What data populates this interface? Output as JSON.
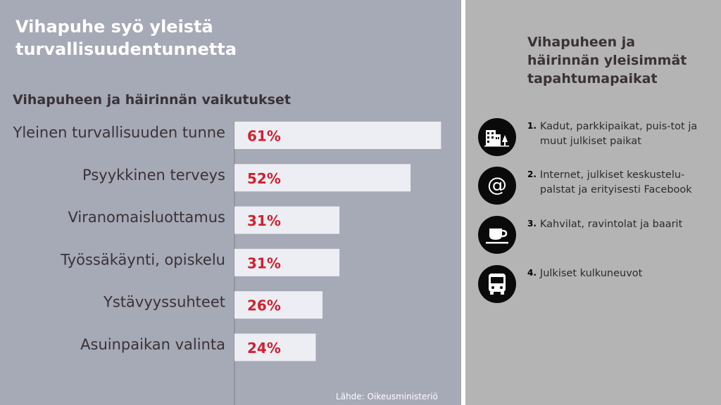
{
  "left": {
    "title": "Vihapuhe syö yleistä turvallisuudentunnetta",
    "subtitle": "Vihapuheen ja häirinnän vaikutukset",
    "source": "Lähde: Oikeusministeriö"
  },
  "chart_data": {
    "type": "bar",
    "orientation": "horizontal",
    "title": "Vihapuheen ja häirinnän vaikutukset",
    "categories": [
      "Yleinen turvallisuuden tunne",
      "Psyykkinen terveys",
      "Viranomaisluottamus",
      "Työssäkäynti, opiskelu",
      "Ystävyyssuhteet",
      "Asuinpaikan valinta"
    ],
    "values": [
      61,
      52,
      31,
      31,
      26,
      24
    ],
    "value_labels": [
      "61%",
      "52%",
      "31%",
      "31%",
      "26%",
      "24%"
    ],
    "unit": "%",
    "xlim": [
      0,
      100
    ],
    "grid": false,
    "colors": {
      "bar": "#eceef3",
      "value_label": "#d2202f",
      "category_label": "#3a3236",
      "axis": "#7d7f8a"
    }
  },
  "right": {
    "title": "Vihapuheen ja häirinnän yleisimmät tapahtumapaikat",
    "places": [
      {
        "number": "1.",
        "label": "Kadut, parkkipaikat, puis-tot ja muut julkiset paikat",
        "icon": "city-buildings-icon"
      },
      {
        "number": "2.",
        "label": "Internet, julkiset keskustelu-palstat ja erityisesti Facebook",
        "icon": "at-sign-icon"
      },
      {
        "number": "3.",
        "label": "Kahvilat, ravintolat ja baarit",
        "icon": "coffee-cup-icon"
      },
      {
        "number": "4.",
        "label": "Julkiset kulkuneuvot",
        "icon": "bus-icon"
      }
    ]
  }
}
